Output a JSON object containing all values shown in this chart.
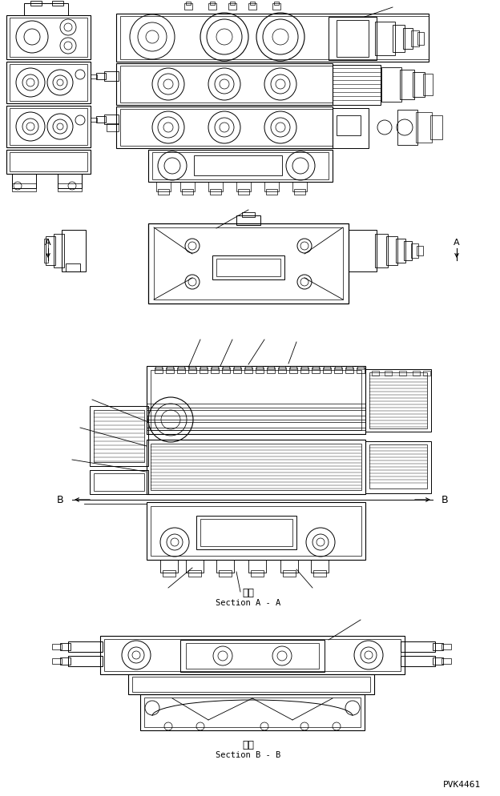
{
  "bg_color": "#ffffff",
  "line_color": "#000000",
  "fig_width": 6.24,
  "fig_height": 9.95,
  "dpi": 100,
  "label_A": "A",
  "label_B": "B",
  "section_aa_kanji": "断面",
  "section_aa_text": "Section A - A",
  "section_bb_kanji": "断面",
  "section_bb_text": "Section B - B",
  "part_number": "PVK4461"
}
